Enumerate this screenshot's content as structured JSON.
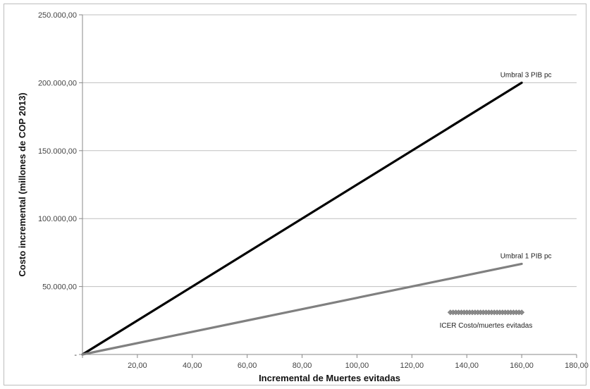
{
  "chart_data": {
    "type": "line",
    "title": "",
    "xlabel": "Incremental  de Muertes evitadas",
    "ylabel": "Costo incremental  (millones  de COP 2013)",
    "xlim": [
      0,
      180
    ],
    "ylim": [
      0,
      250000
    ],
    "x_ticks": [
      {
        "value": 20,
        "label": "20,00"
      },
      {
        "value": 40,
        "label": "40,00"
      },
      {
        "value": 60,
        "label": "60,00"
      },
      {
        "value": 80,
        "label": "80,00"
      },
      {
        "value": 100,
        "label": "100,00"
      },
      {
        "value": 120,
        "label": "120,00"
      },
      {
        "value": 140,
        "label": "140,00"
      },
      {
        "value": 160,
        "label": "160,00"
      },
      {
        "value": 180,
        "label": "180,00"
      }
    ],
    "y_ticks": [
      {
        "value": 0,
        "label": "-"
      },
      {
        "value": 50000,
        "label": "50.000,00"
      },
      {
        "value": 100000,
        "label": "100.000,00"
      },
      {
        "value": 150000,
        "label": "150.000,00"
      },
      {
        "value": 200000,
        "label": "200.000,00"
      },
      {
        "value": 250000,
        "label": "250.000,00"
      }
    ],
    "grid": {
      "horizontal": true,
      "vertical": false
    },
    "series": [
      {
        "name": "Umbral 3 PIB pc",
        "type": "line",
        "color": "#000000",
        "points": [
          [
            0,
            0
          ],
          [
            160,
            200000
          ]
        ]
      },
      {
        "name": "Umbral 1 PIB pc",
        "type": "line",
        "color": "#808080",
        "points": [
          [
            0,
            0
          ],
          [
            160,
            66700
          ]
        ]
      },
      {
        "name": "ICER Costo/muertes evitadas",
        "type": "scatter",
        "color": "#8c8c8c",
        "x": [
          134,
          135,
          136,
          137,
          138,
          139,
          140,
          141,
          142,
          143,
          144,
          145,
          146,
          147,
          148,
          149,
          150,
          151,
          152,
          153,
          154,
          155,
          156,
          157,
          158,
          159,
          160
        ],
        "y": [
          31000,
          31000,
          31000,
          31000,
          31000,
          31000,
          31000,
          31000,
          31000,
          31000,
          31000,
          31000,
          31000,
          31000,
          31000,
          31000,
          31000,
          31000,
          31000,
          31000,
          31000,
          31000,
          31000,
          31000,
          31000,
          31000,
          31000
        ]
      }
    ]
  }
}
